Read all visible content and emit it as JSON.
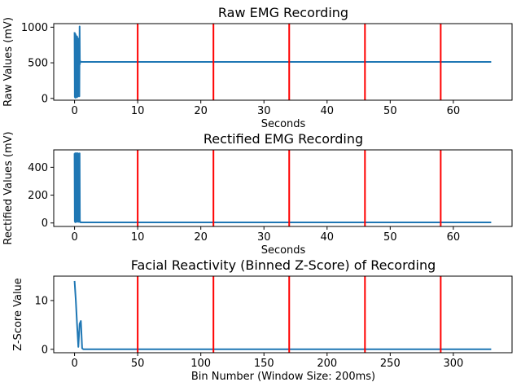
{
  "chart_data": [
    {
      "type": "line",
      "title": "Raw EMG Recording",
      "xlabel": "Seconds",
      "ylabel": "Raw Values (mV)",
      "xlim": [
        -3.3,
        69.3
      ],
      "ylim": [
        -25,
        1050
      ],
      "xticks": [
        0,
        10,
        20,
        30,
        40,
        50,
        60
      ],
      "yticks": [
        0,
        500,
        1000
      ],
      "series": [
        {
          "color": "#1f77b4",
          "x": [
            0,
            0.04,
            0.08,
            0.12,
            0.16,
            0.2,
            0.24,
            0.28,
            0.32,
            0.36,
            0.4,
            0.44,
            0.48,
            0.52,
            0.56,
            0.6,
            0.64,
            0.68,
            0.72,
            0.76,
            0.8,
            0.84,
            0.88,
            0.92,
            0.96,
            1.0,
            2,
            10,
            20,
            30,
            40,
            50,
            60,
            66
          ],
          "values": [
            930,
            20,
            910,
            10,
            900,
            30,
            880,
            60,
            860,
            15,
            870,
            40,
            850,
            25,
            840,
            500,
            520,
            490,
            540,
            30,
            1010,
            480,
            530,
            510,
            515,
            512,
            512,
            512,
            512,
            512,
            512,
            512,
            512,
            512
          ]
        }
      ],
      "vlines": [
        10,
        22,
        34,
        46,
        58
      ],
      "vline_color": "#ff0000"
    },
    {
      "type": "line",
      "title": "Rectified EMG Recording",
      "xlabel": "Seconds",
      "ylabel": "Rectified Values (mV)",
      "xlim": [
        -3.3,
        69.3
      ],
      "ylim": [
        -25,
        525
      ],
      "xticks": [
        0,
        10,
        20,
        30,
        40,
        50,
        60
      ],
      "yticks": [
        0,
        200,
        400
      ],
      "series": [
        {
          "color": "#1f77b4",
          "x": [
            0,
            0.04,
            0.08,
            0.12,
            0.16,
            0.2,
            0.24,
            0.28,
            0.32,
            0.36,
            0.4,
            0.44,
            0.48,
            0.52,
            0.56,
            0.6,
            0.64,
            0.68,
            0.72,
            0.76,
            0.8,
            0.84,
            0.88,
            0.92,
            0.96,
            1.0,
            2,
            10,
            20,
            30,
            40,
            50,
            60,
            66
          ],
          "values": [
            500,
            10,
            500,
            5,
            500,
            20,
            500,
            40,
            500,
            8,
            500,
            30,
            500,
            15,
            500,
            8,
            12,
            10,
            25,
            8,
            500,
            20,
            10,
            6,
            4,
            4,
            4,
            4,
            4,
            4,
            4,
            4,
            4,
            4
          ]
        }
      ],
      "vlines": [
        10,
        22,
        34,
        46,
        58
      ],
      "vline_color": "#ff0000"
    },
    {
      "type": "line",
      "title": "Facial Reactivity (Binned Z-Score) of Recording",
      "xlabel": "Bin Number (Window Size: 200ms)",
      "ylabel": "Z-Score Value",
      "xlim": [
        -16.5,
        346.5
      ],
      "ylim": [
        -0.7,
        15
      ],
      "xticks": [
        0,
        50,
        100,
        150,
        200,
        250,
        300
      ],
      "yticks": [
        0,
        10
      ],
      "series": [
        {
          "color": "#1f77b4",
          "x": [
            0,
            1,
            2,
            3,
            4,
            5,
            6,
            7,
            8,
            10,
            50,
            100,
            200,
            300,
            330
          ],
          "values": [
            14,
            10,
            5,
            0.5,
            5.2,
            5.8,
            0.2,
            0,
            0,
            0,
            0,
            0,
            0,
            0,
            0
          ]
        }
      ],
      "vlines": [
        50,
        110,
        170,
        230,
        290
      ],
      "vline_color": "#ff0000"
    }
  ]
}
